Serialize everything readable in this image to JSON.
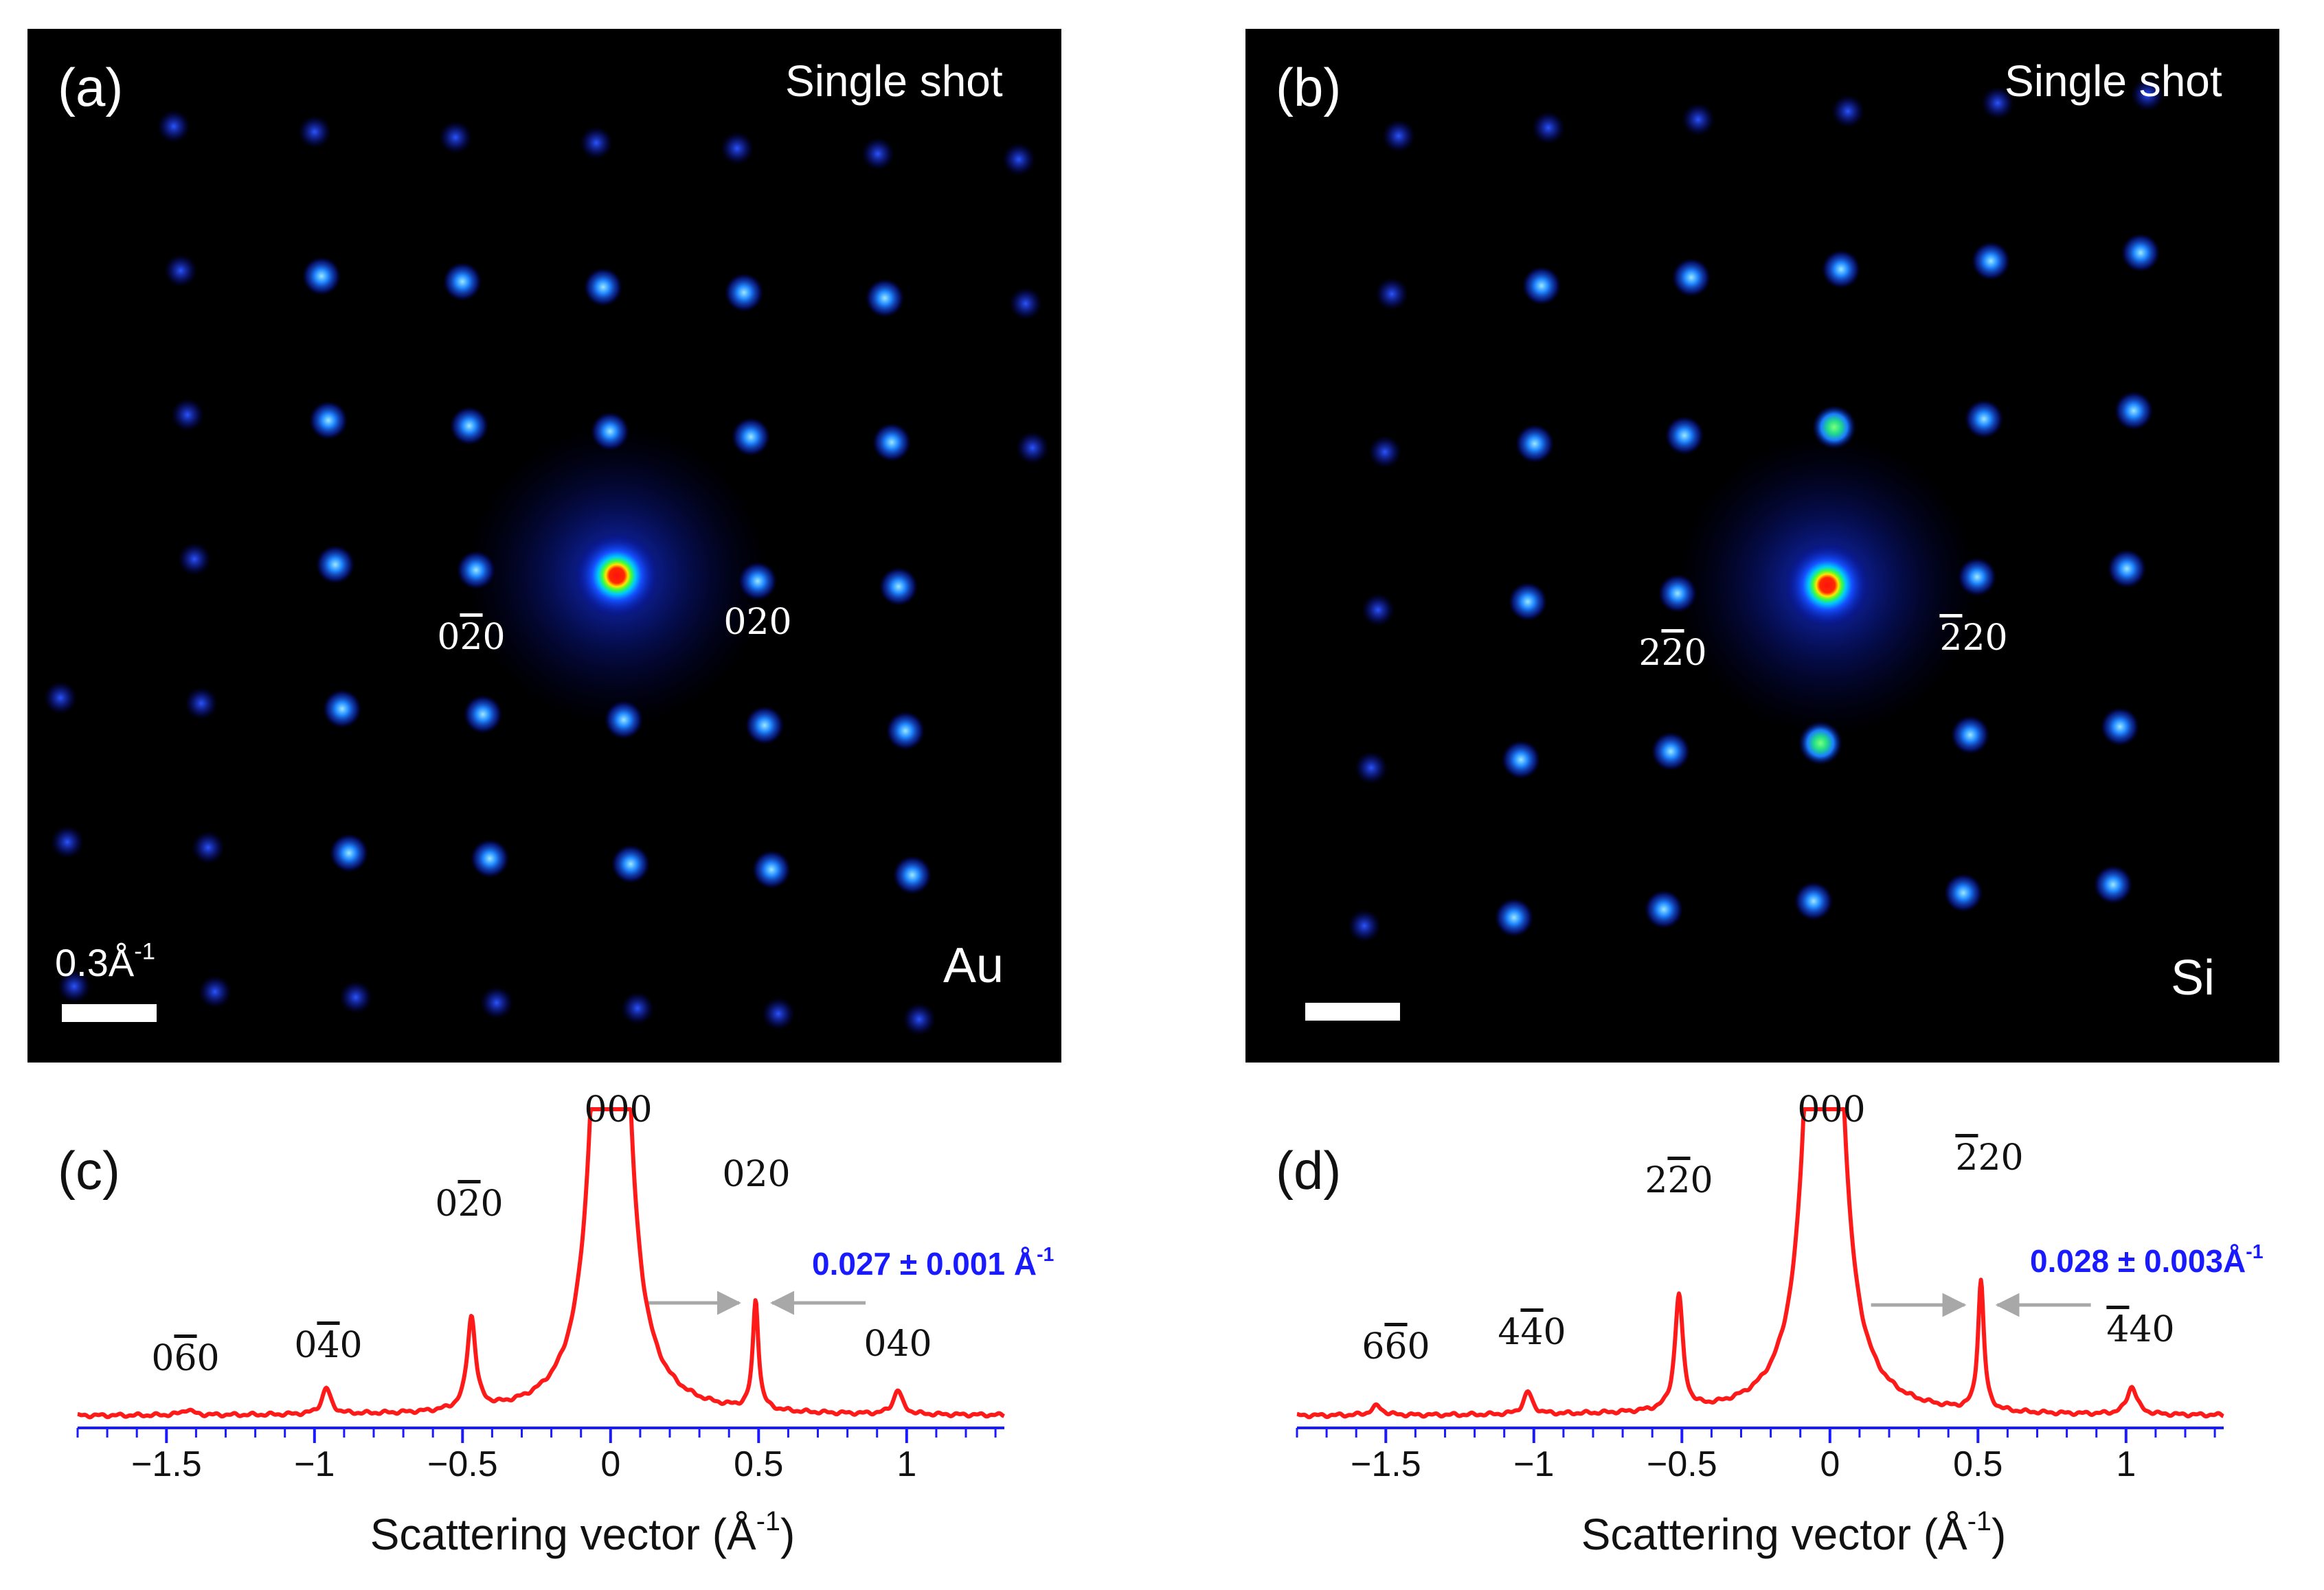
{
  "panels": {
    "a": {
      "label": "(a)",
      "shot": "Single shot",
      "element": "Au",
      "scale_text": "0.3Å",
      "scale_unit_exp": "-1",
      "spot_labels": [
        {
          "pre": "0",
          "bar": "2",
          "post": "0"
        },
        {
          "pre": "020",
          "bar": "",
          "post": ""
        }
      ]
    },
    "b": {
      "label": "(b)",
      "shot": "Single shot",
      "element": "Si",
      "spot_labels": [
        {
          "pre": "2",
          "bar": "2",
          "post": "0"
        },
        {
          "pre": "",
          "bar": "2",
          "post": "20"
        }
      ]
    },
    "c": {
      "label": "(c)",
      "fwhm_value": "0.027",
      "fwhm_pm": "±",
      "fwhm_err": "0.001 Å",
      "fwhm_exp": "-1",
      "xlabel": "Scattering vector (Å",
      "xlabel_exp": "-1",
      "xlabel_close": ")",
      "peak_labels": [
        {
          "pre": "000",
          "bar": "",
          "post": ""
        },
        {
          "pre": "0",
          "bar": "2",
          "post": "0"
        },
        {
          "pre": "020",
          "bar": "",
          "post": ""
        },
        {
          "pre": "0",
          "bar": "6",
          "post": "0"
        },
        {
          "pre": "0",
          "bar": "4",
          "post": "0"
        },
        {
          "pre": "040",
          "bar": "",
          "post": ""
        }
      ]
    },
    "d": {
      "label": "(d)",
      "fwhm_value": "0.028",
      "fwhm_pm": "±",
      "fwhm_err": "0.003Å",
      "fwhm_exp": "-1",
      "xlabel": "Scattering vector (Å",
      "xlabel_exp": "-1",
      "xlabel_close": ")",
      "peak_labels": [
        {
          "pre": "000",
          "bar": "",
          "post": ""
        },
        {
          "pre": "2",
          "bar": "2",
          "post": "0"
        },
        {
          "pre": "",
          "bar": "2",
          "post": "20"
        },
        {
          "pre": "6",
          "bar": "6",
          "post": "0"
        },
        {
          "pre": "4",
          "bar": "4",
          "post": "0"
        },
        {
          "pre": "",
          "bar": "4",
          "post": "40"
        }
      ]
    }
  },
  "colors": {
    "profile": "#ff1a1a",
    "axis": "#1a1aff",
    "arrow": "#a8a8a8",
    "fwhm_text": "#1a1aff",
    "pattern_bg": "#000000"
  },
  "chart_data": [
    {
      "type": "heatmap",
      "panel": "a",
      "title": "Single shot",
      "sample": "Au",
      "scale_bar_inv_angstrom": 0.3,
      "lattice_spacing_inv_angstrom": 0.49,
      "center_spot": "000",
      "indexed_spots": [
        {
          "label": "0-20",
          "qx": -0.49,
          "qy": 0.0
        },
        {
          "label": "020",
          "qx": 0.49,
          "qy": 0.0
        }
      ]
    },
    {
      "type": "heatmap",
      "panel": "b",
      "title": "Single shot",
      "sample": "Si",
      "scale_bar_inv_angstrom": 0.3,
      "lattice_spacing_inv_angstrom": 0.515,
      "center_spot": "000",
      "indexed_spots": [
        {
          "label": "2-20",
          "qx": -0.515,
          "qy": 0.0
        },
        {
          "label": "-220",
          "qx": 0.515,
          "qy": 0.0
        }
      ]
    },
    {
      "type": "line",
      "panel": "c",
      "xlabel": "Scattering vector (Å-1)",
      "ylabel": "",
      "xlim": [
        -1.8,
        1.33
      ],
      "xticks": [
        -1.5,
        -1,
        -0.5,
        0,
        0.5,
        1
      ],
      "xtick_labels": [
        "−1.5",
        "−1",
        "−0.5",
        "0",
        "0.5",
        "1"
      ],
      "baseline": 0.012,
      "peaks": [
        {
          "label": "06̄0",
          "x": -1.43,
          "height": 0.03,
          "width": 0.022
        },
        {
          "label": "04̄0",
          "x": -0.96,
          "height": 0.14,
          "width": 0.018
        },
        {
          "label": "02̄0",
          "x": -0.47,
          "height": 0.5,
          "width": 0.017
        },
        {
          "label": "000",
          "x": 0.0,
          "height": 8.0,
          "width": 0.035
        },
        {
          "label": "020",
          "x": 0.49,
          "height": 0.59,
          "width": 0.0115
        },
        {
          "label": "040",
          "x": 0.97,
          "height": 0.13,
          "width": 0.018
        }
      ],
      "fwhm_annotation": "0.027±0.001 Å-1",
      "fwhm_inv_angstrom": 0.027,
      "fwhm_err_inv_angstrom": 0.001
    },
    {
      "type": "line",
      "panel": "d",
      "xlabel": "Scattering vector (Å-1)",
      "ylabel": "",
      "xlim": [
        -1.8,
        1.33
      ],
      "xticks": [
        -1.5,
        -1,
        -0.5,
        0,
        0.5,
        1
      ],
      "xtick_labels": [
        "−1.5",
        "−1",
        "−0.5",
        "0",
        "0.5",
        "1"
      ],
      "baseline": 0.012,
      "peaks": [
        {
          "label": "66̄0",
          "x": -1.53,
          "height": 0.05,
          "width": 0.022
        },
        {
          "label": "44̄0",
          "x": -1.02,
          "height": 0.12,
          "width": 0.018
        },
        {
          "label": "22̄0",
          "x": -0.51,
          "height": 0.62,
          "width": 0.016
        },
        {
          "label": "000",
          "x": -0.02,
          "height": 8.0,
          "width": 0.035
        },
        {
          "label": "2̄20",
          "x": 0.51,
          "height": 0.7,
          "width": 0.012
        },
        {
          "label": "4̄40",
          "x": 1.02,
          "height": 0.15,
          "width": 0.02
        }
      ],
      "fwhm_annotation": "0.028±0.003Å-1",
      "fwhm_inv_angstrom": 0.028,
      "fwhm_err_inv_angstrom": 0.003
    }
  ]
}
